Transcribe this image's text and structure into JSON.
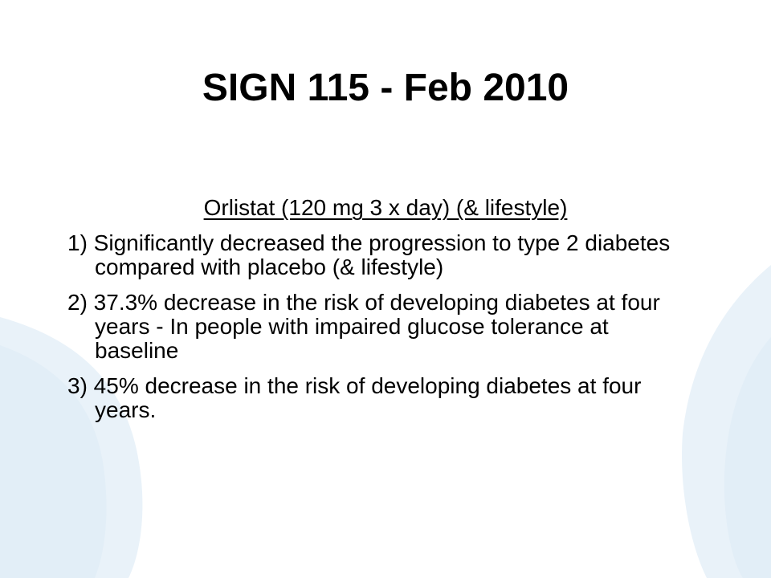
{
  "slide": {
    "title": "SIGN 115 - Feb 2010",
    "subheading": "Orlistat  (120 mg 3 x day)  (& lifestyle)",
    "points": [
      "1) Significantly decreased the progression to type 2 diabetes compared with placebo (& lifestyle)",
      "2) 37.3% decrease in the risk of developing diabetes at four years -  In people with impaired glucose tolerance at baseline",
      "3) 45% decrease in the risk of developing diabetes at four years."
    ]
  },
  "colors": {
    "background": "#ffffff",
    "text": "#000000",
    "decoration": "#e7f1f8"
  }
}
